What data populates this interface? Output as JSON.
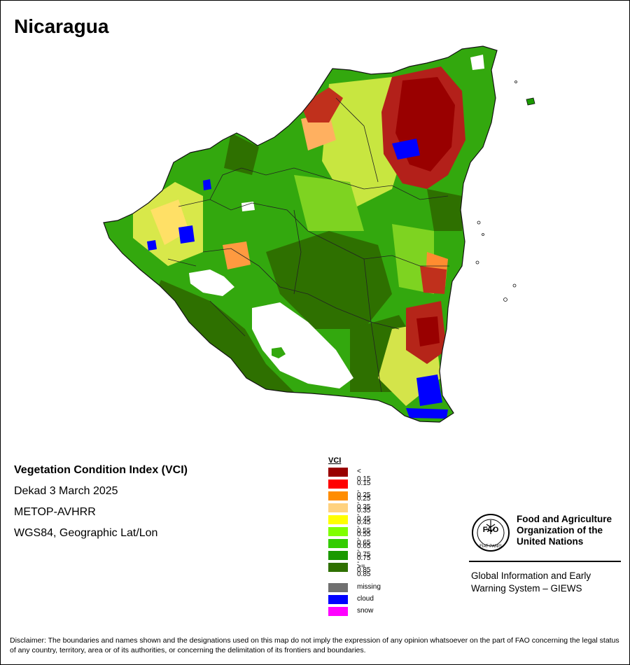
{
  "map": {
    "title": "Nicaragua",
    "subtitle_lines": [
      "Vegetation Condition Index (VCI)",
      "Dekad 3 March 2025",
      "METOP-AVHRR",
      "WGS84, Geographic Lat/Lon"
    ]
  },
  "legend": {
    "title": "VCI",
    "classes": [
      {
        "label": "< 0.15",
        "color": "#990000"
      },
      {
        "label": "0.15 - 0.25",
        "color": "#ff0000"
      },
      {
        "label": "0.25 - 0.35",
        "color": "#ff8c00"
      },
      {
        "label": "0.35 - 0.45",
        "color": "#ffd27f"
      },
      {
        "label": "0.45 - 0.55",
        "color": "#ffff00"
      },
      {
        "label": "0.55 - 0.65",
        "color": "#80ff00"
      },
      {
        "label": "0.65 - 0.75",
        "color": "#33cc00"
      },
      {
        "label": "0.75 - 0.85",
        "color": "#1a9900"
      },
      {
        "label": ">= 0.85",
        "color": "#2e7000"
      }
    ],
    "special": [
      {
        "label": "missing",
        "color": "#707070"
      },
      {
        "label": "cloud",
        "color": "#0000ff"
      },
      {
        "label": "snow",
        "color": "#ff00ff"
      }
    ]
  },
  "organization": {
    "name_lines": [
      "Food and Agriculture",
      "Organization of the",
      "United Nations"
    ],
    "logo_text": "FAO",
    "logo_motto": "FIAT PANIS",
    "system_lines": [
      "Global Information and Early",
      "Warning System – GIEWS"
    ]
  },
  "disclaimer": "Disclaimer: The boundaries and names shown and the designations used on this map do not imply the expression of any opinion whatsoever on the part of FAO concerning the legal status of any country, territory, area or of its authorities, or concerning the delimitation of its frontiers and boundaries."
}
